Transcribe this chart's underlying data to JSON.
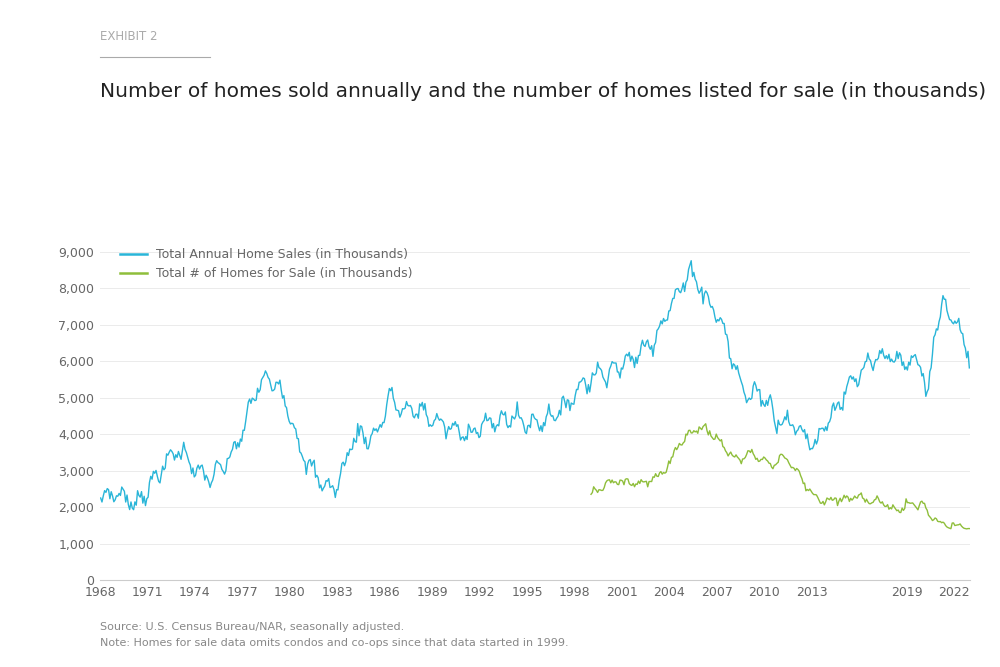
{
  "exhibit_label": "EXHIBIT 2",
  "title": "Number of homes sold annually and the number of homes listed for sale (in thousands)",
  "source_text": "Source: U.S. Census Bureau/NAR, seasonally adjusted.",
  "note_text": "Note: Homes for sale data omits condos and co-ops since that data started in 1999.",
  "legend_entries": [
    "Total Annual Home Sales (in Thousands)",
    "Total # of Homes for Sale (in Thousands)"
  ],
  "line_colors": [
    "#29b5d8",
    "#8fbe3b"
  ],
  "background_color": "#ffffff",
  "xlim": [
    1968,
    2023
  ],
  "ylim": [
    0,
    9500
  ],
  "yticks": [
    0,
    1000,
    2000,
    3000,
    4000,
    5000,
    6000,
    7000,
    8000,
    9000
  ],
  "xticks": [
    1968,
    1971,
    1974,
    1977,
    1980,
    1983,
    1986,
    1989,
    1992,
    1995,
    1998,
    2001,
    2004,
    2007,
    2010,
    2013,
    2019,
    2022
  ],
  "exhibit_color": "#aaaaaa",
  "title_color": "#222222",
  "axis_color": "#cccccc",
  "tick_color": "#666666",
  "source_color": "#888888",
  "font_family": "DejaVu Sans"
}
